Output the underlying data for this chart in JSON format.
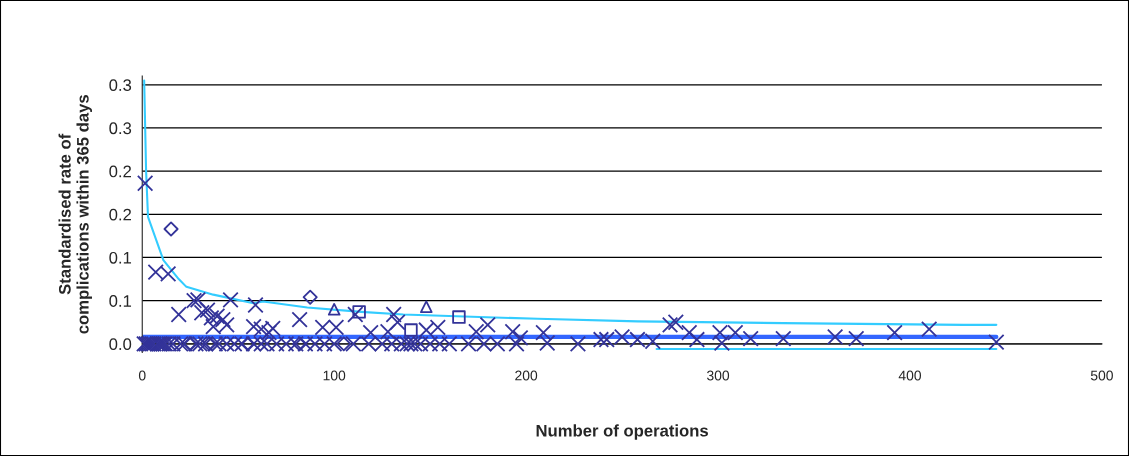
{
  "chart_data": {
    "type": "scatter",
    "xlabel": "Number of operations",
    "ylabel": "Standardised rate of\ncomplications within 365 days",
    "xlim": [
      0,
      500
    ],
    "xticks": [
      0,
      100,
      200,
      300,
      400,
      500
    ],
    "ylim": [
      -0.01,
      0.31
    ],
    "yticks": [
      {
        "value": 0,
        "label": "0.0"
      },
      {
        "value": 0.05,
        "label": "0.1"
      },
      {
        "value": 0.1,
        "label": "0.1"
      },
      {
        "value": 0.15,
        "label": "0.2"
      },
      {
        "value": 0.2,
        "label": "0.2"
      },
      {
        "value": 0.25,
        "label": "0.3"
      },
      {
        "value": 0.3,
        "label": "0.3"
      }
    ],
    "grid": "y",
    "legend": false,
    "series": [
      {
        "marker": "cross",
        "color": "#333399",
        "x": [
          1.5,
          7,
          13.5,
          19,
          27,
          29,
          46,
          59,
          111,
          31,
          34,
          36,
          39,
          42,
          44,
          37,
          58,
          62,
          66,
          68,
          82,
          94,
          101,
          131,
          133,
          119,
          128,
          148,
          154,
          180,
          174,
          193,
          197,
          209,
          211,
          227,
          239,
          242,
          250,
          258,
          266,
          275,
          278,
          285,
          289,
          301,
          302,
          309,
          317,
          334,
          361,
          372,
          392,
          410,
          445,
          1,
          2,
          3,
          4,
          5,
          6,
          8,
          9,
          10,
          11,
          12,
          14,
          16,
          20,
          22,
          28,
          30,
          33,
          38,
          40,
          44,
          48,
          52,
          58,
          62,
          65,
          70,
          75,
          80,
          85,
          90,
          95,
          100,
          110,
          118,
          125,
          130,
          135,
          138,
          140,
          142,
          145,
          150,
          155,
          160,
          170,
          178,
          185,
          195
        ],
        "values": [
          0.186,
          0.083,
          0.081,
          0.034,
          0.05,
          0.051,
          0.051,
          0.045,
          0.034,
          0.036,
          0.039,
          0.03,
          0.032,
          0.028,
          0.022,
          0.02,
          0.02,
          0.017,
          0.013,
          0.018,
          0.028,
          0.019,
          0.019,
          0.034,
          0.025,
          0.013,
          0.014,
          0.016,
          0.019,
          0.022,
          0.014,
          0.014,
          0.007,
          0.013,
          0.001,
          0,
          0.005,
          0.005,
          0.008,
          0.005,
          0.003,
          0.022,
          0.025,
          0.013,
          0.005,
          0.013,
          0.001,
          0.013,
          0.006,
          0.006,
          0.008,
          0.006,
          0.013,
          0.017,
          0.002,
          0,
          0,
          0,
          0,
          0,
          0,
          0,
          0,
          0,
          0,
          0,
          0,
          0,
          0,
          0,
          0,
          0,
          0,
          0,
          0,
          0,
          0,
          0,
          0,
          0,
          0,
          0,
          0,
          0,
          0,
          0,
          0,
          0,
          0,
          0,
          0,
          0,
          0,
          0,
          0,
          0,
          0,
          0,
          0,
          0,
          0,
          0,
          0,
          0
        ]
      },
      {
        "marker": "diamond",
        "color": "#333399",
        "x": [
          15,
          87.5,
          25,
          35,
          55,
          82,
          105
        ],
        "values": [
          0.133,
          0.054,
          0,
          0,
          0,
          0,
          0
        ]
      },
      {
        "marker": "triangle",
        "color": "#333399",
        "x": [
          100,
          148
        ],
        "values": [
          0.04,
          0.043
        ]
      },
      {
        "marker": "square",
        "color": "#333399",
        "x": [
          113,
          140,
          165
        ],
        "values": [
          0.037,
          0.016,
          0.031
        ]
      },
      {
        "type": "line",
        "marker": "none",
        "color": "#33ccff",
        "x": [
          1,
          2,
          3,
          11,
          19,
          23,
          37,
          58,
          63,
          86,
          114,
          136,
          206,
          258,
          334,
          428,
          445
        ],
        "values": [
          0.305,
          0.2,
          0.147,
          0.097,
          0.075,
          0.066,
          0.057,
          0.047,
          0.049,
          0.042,
          0.037,
          0.034,
          0.029,
          0.026,
          0.024,
          0.022,
          0.022
        ]
      },
      {
        "type": "line",
        "marker": "none",
        "color": "#3366ff",
        "x": [
          0,
          445
        ],
        "values": [
          0.008,
          0.008
        ]
      },
      {
        "type": "line",
        "marker": "none",
        "color": "#33ccff",
        "x": [
          268,
          340,
          445
        ],
        "values": [
          -0.006,
          -0.006,
          -0.006
        ]
      }
    ]
  }
}
